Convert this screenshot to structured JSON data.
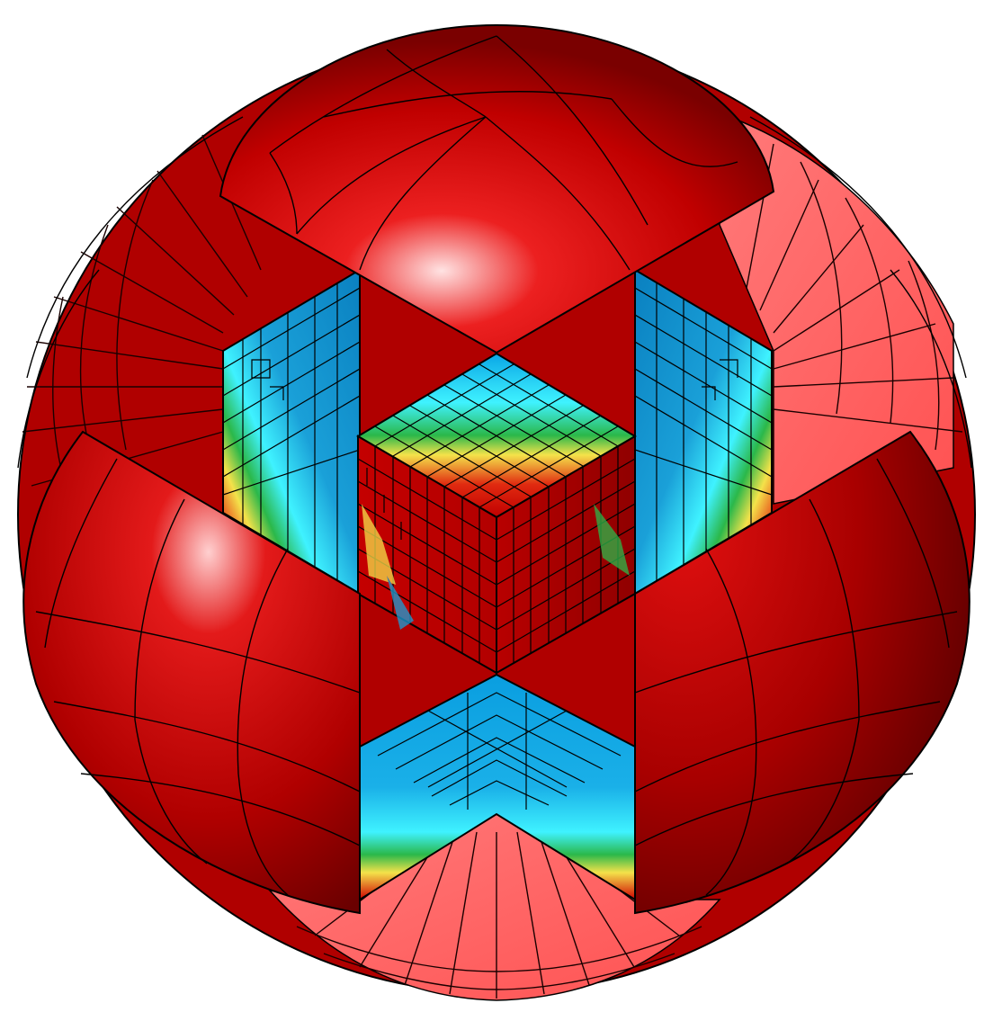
{
  "figure": {
    "subject": "adaptive-mesh-sphere-cutaway",
    "colors": {
      "background": "#ffffff",
      "shell_red": "#d10000",
      "shell_dark": "#7a0000",
      "shell_light": "#ff5a5a",
      "highlight": "#ffe0e0",
      "cube_red": "#c80000",
      "cross_section_blue": "#0a8fd0",
      "cross_section_cyan": "#3ff2ff",
      "cross_section_yellow": "#f4e24a",
      "cross_section_green": "#2bb84a",
      "mesh_line": "#1a0000",
      "outline": "#000000"
    }
  }
}
